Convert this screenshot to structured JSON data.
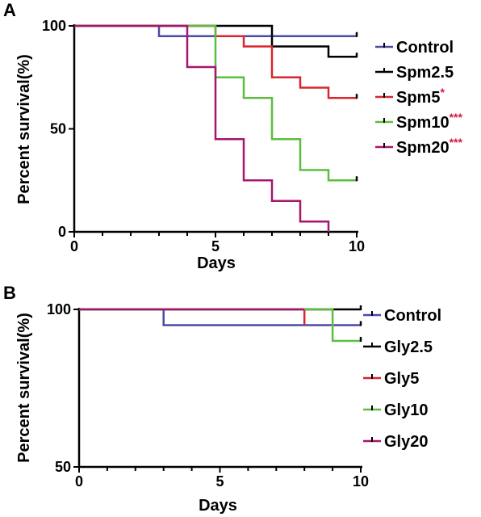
{
  "chart_data": [
    {
      "type": "line",
      "panel": "A",
      "xlabel": "Days",
      "ylabel": "Percent survival(%)",
      "xlim": [
        0,
        10
      ],
      "ylim": [
        0,
        100
      ],
      "xticks": [
        "0",
        "5",
        "10"
      ],
      "yticks": [
        "0",
        "50",
        "100"
      ],
      "legend_placement": "right",
      "series": [
        {
          "name": "Control",
          "sig": "",
          "color": "#4a4aa8",
          "steps": [
            [
              0,
              100
            ],
            [
              3,
              100
            ],
            [
              3,
              95
            ],
            [
              10,
              95
            ]
          ]
        },
        {
          "name": "Spm2.5",
          "sig": "",
          "color": "#000000",
          "steps": [
            [
              0,
              100
            ],
            [
              7,
              100
            ],
            [
              7,
              90
            ],
            [
              9,
              90
            ],
            [
              9,
              85
            ],
            [
              10,
              85
            ]
          ]
        },
        {
          "name": "Spm5",
          "sig": "*",
          "color": "#d9262c",
          "steps": [
            [
              0,
              100
            ],
            [
              5,
              100
            ],
            [
              5,
              95
            ],
            [
              6,
              95
            ],
            [
              6,
              90
            ],
            [
              7,
              90
            ],
            [
              7,
              75
            ],
            [
              8,
              75
            ],
            [
              8,
              70
            ],
            [
              9,
              70
            ],
            [
              9,
              65
            ],
            [
              10,
              65
            ]
          ]
        },
        {
          "name": "Spm10",
          "sig": "***",
          "color": "#5cbe3e",
          "steps": [
            [
              0,
              100
            ],
            [
              5,
              100
            ],
            [
              5,
              75
            ],
            [
              6,
              75
            ],
            [
              6,
              65
            ],
            [
              7,
              65
            ],
            [
              7,
              45
            ],
            [
              8,
              45
            ],
            [
              8,
              30
            ],
            [
              9,
              30
            ],
            [
              9,
              25
            ],
            [
              10,
              25
            ]
          ]
        },
        {
          "name": "Spm20",
          "sig": "***",
          "color": "#a6156e",
          "steps": [
            [
              0,
              100
            ],
            [
              4,
              100
            ],
            [
              4,
              80
            ],
            [
              5,
              80
            ],
            [
              5,
              45
            ],
            [
              6,
              45
            ],
            [
              6,
              25
            ],
            [
              7,
              25
            ],
            [
              7,
              15
            ],
            [
              8,
              15
            ],
            [
              8,
              5
            ],
            [
              9,
              5
            ],
            [
              9,
              0
            ]
          ]
        }
      ]
    },
    {
      "type": "line",
      "panel": "B",
      "xlabel": "Days",
      "ylabel": "Percent survival(%)",
      "xlim": [
        0,
        10
      ],
      "ylim": [
        50,
        100
      ],
      "xticks": [
        "0",
        "5",
        "10"
      ],
      "yticks": [
        "50",
        "100"
      ],
      "legend_placement": "right",
      "series": [
        {
          "name": "Control",
          "sig": "",
          "color": "#4a4aa8",
          "steps": [
            [
              0,
              100
            ],
            [
              3,
              100
            ],
            [
              3,
              95
            ],
            [
              10,
              95
            ]
          ]
        },
        {
          "name": "Gly2.5",
          "sig": "",
          "color": "#000000",
          "steps": [
            [
              0,
              100
            ],
            [
              10,
              100
            ]
          ]
        },
        {
          "name": "Gly5",
          "sig": "",
          "color": "#d9262c",
          "steps": [
            [
              0,
              100
            ],
            [
              8,
              100
            ],
            [
              8,
              95
            ]
          ]
        },
        {
          "name": "Gly10",
          "sig": "",
          "color": "#5cbe3e",
          "steps": [
            [
              0,
              100
            ],
            [
              9,
              100
            ],
            [
              9,
              90
            ],
            [
              10,
              90
            ]
          ]
        },
        {
          "name": "Gly20",
          "sig": "",
          "color": "#a6156e",
          "steps": [
            [
              0,
              100
            ],
            [
              8,
              100
            ]
          ]
        }
      ]
    }
  ]
}
